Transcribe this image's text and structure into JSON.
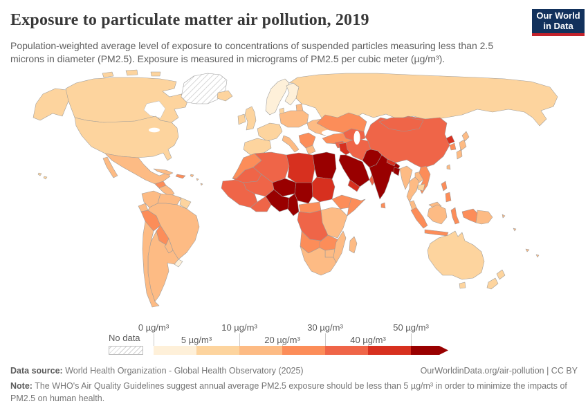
{
  "header": {
    "title": "Exposure to particulate matter air pollution, 2019",
    "subtitle": "Population-weighted average level of exposure to concentrations of suspended particles measuring less than 2.5 microns in diameter (PM2.5). Exposure is measured in micrograms of PM2.5 per cubic meter (µg/m³).",
    "logo": {
      "line1": "Our World",
      "line2": "in Data",
      "bg_color": "#12315c",
      "accent_color": "#c4222b"
    }
  },
  "chart_data": {
    "type": "choropleth_map",
    "title": "Exposure to particulate matter air pollution",
    "year": "2019",
    "unit": "µg/m³",
    "legend": {
      "no_data_label": "No data",
      "ticks": [
        "0 µg/m³",
        "5 µg/m³",
        "10 µg/m³",
        "20 µg/m³",
        "30 µg/m³",
        "40 µg/m³",
        "50 µg/m³"
      ],
      "bins": [
        {
          "label": "0-5",
          "color": "#fef0d9"
        },
        {
          "label": "5-10",
          "color": "#fdd49e"
        },
        {
          "label": "10-20",
          "color": "#fdbb84"
        },
        {
          "label": "20-30",
          "color": "#fc8d59"
        },
        {
          "label": "30-40",
          "color": "#ef6548"
        },
        {
          "label": "40-50",
          "color": "#d7301f"
        },
        {
          "label": "50+",
          "color": "#990000"
        }
      ]
    },
    "regions": {
      "alaska": "5-10",
      "canada": "5-10",
      "greenland": "no-data",
      "usa": "5-10",
      "mexico": "10-20",
      "guatemala": "20-30",
      "central_america": "10-20",
      "cuba": "10-20",
      "hispaniola": "20-30",
      "caribbean_islands": "10-20",
      "hawaii": "5-10",
      "colombia": "10-20",
      "venezuela": "10-20",
      "guyanas": "5-10",
      "ecuador": "10-20",
      "peru": "20-30",
      "brazil": "10-20",
      "bolivia": "20-30",
      "paraguay": "10-20",
      "chile": "10-20",
      "argentina": "10-20",
      "uruguay": "0-5",
      "iceland": "5-10",
      "ireland": "5-10",
      "uk": "5-10",
      "norway_sweden": "0-5",
      "finland": "0-5",
      "denmark": "5-10",
      "baltics": "10-20",
      "central_europe": "10-20",
      "france": "5-10",
      "iberia": "5-10",
      "italy": "10-20",
      "balkans": "20-30",
      "greece": "10-20",
      "ukraine": "10-20",
      "russia": "5-10",
      "turkey": "20-30",
      "caucasus": "20-30",
      "syria": "30-40",
      "iraq": "40-50",
      "saudi_arabia": "50+",
      "yemen": "40-50",
      "oman": "30-40",
      "iran": "30-40",
      "afghanistan": "50+",
      "pakistan": "50+",
      "india": "50+",
      "nepal": "40-50",
      "bangladesh": "50+",
      "sri_lanka": "20-30",
      "kazakhstan": "20-30",
      "central_asia": "30-40",
      "china": "30-40",
      "mongolia": "30-40",
      "north_korea": "40-50",
      "south_korea": "20-30",
      "japan": "10-20",
      "taiwan": "10-20",
      "myanmar": "10-20",
      "thailand": "10-20",
      "laos": "10-20",
      "vietnam": "20-30",
      "cambodia": "5-10",
      "malaysia": "10-20",
      "sumatra": "20-30",
      "java": "20-30",
      "borneo": "10-20",
      "sulawesi": "20-30",
      "philippines": "20-30",
      "west_papua": "20-30",
      "papua_new_guinea": "10-20",
      "pacific_islands": "10-20",
      "australia": "5-10",
      "new_zealand": "5-10",
      "morocco": "20-30",
      "algeria": "30-40",
      "libya": "40-50",
      "egypt": "50+",
      "mauritania": "30-40",
      "mali": "30-40",
      "niger": "50+",
      "chad": "50+",
      "sudan": "40-50",
      "west_africa": "30-40",
      "ghana_ivory": "30-40",
      "nigeria": "50+",
      "cameroon": "50+",
      "central_african_republic": "20-30",
      "ethiopia": "20-30",
      "somalia": "20-30",
      "east_africa": "10-20",
      "drc": "30-40",
      "angola": "20-30",
      "zambia": "20-30",
      "zimbabwe": "10-20",
      "mozambique": "10-20",
      "southern_africa": "10-20",
      "madagascar": "10-20"
    }
  },
  "footer": {
    "datasource_label": "Data source:",
    "datasource": "World Health Organization - Global Health Observatory (2025)",
    "link": "OurWorldinData.org/air-pollution | CC BY",
    "note_label": "Note:",
    "note": "The WHO's Air Quality Guidelines suggest annual average PM2.5 exposure should be less than 5 µg/m³ in order to minimize the impacts of PM2.5 on human health."
  }
}
